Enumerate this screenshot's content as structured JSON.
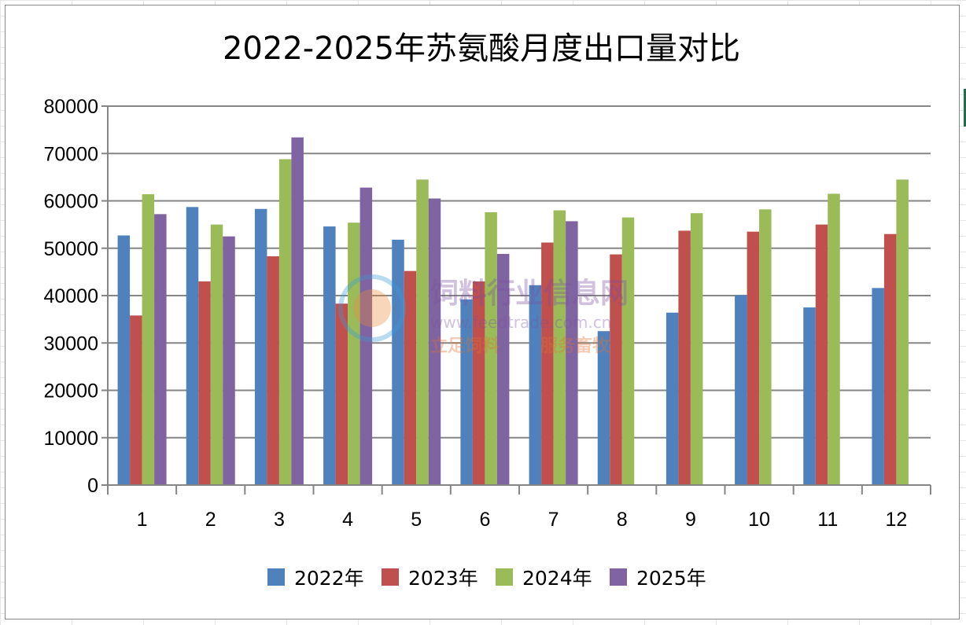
{
  "chart_data": {
    "type": "bar",
    "title": "2022-2025年苏氨酸月度出口量对比",
    "xlabel": "",
    "ylabel": "",
    "categories": [
      "1",
      "2",
      "3",
      "4",
      "5",
      "6",
      "7",
      "8",
      "9",
      "10",
      "11",
      "12"
    ],
    "ylim": [
      0,
      80000
    ],
    "yticks": [
      0,
      10000,
      20000,
      30000,
      40000,
      50000,
      60000,
      70000,
      80000
    ],
    "grid": true,
    "legend_position": "bottom",
    "series": [
      {
        "name": "2022年",
        "color": "#4F81BD",
        "values": [
          52700,
          58700,
          58300,
          54600,
          51800,
          39200,
          42200,
          32500,
          36400,
          40100,
          37500,
          41600
        ]
      },
      {
        "name": "2023年",
        "color": "#C0504D",
        "values": [
          35800,
          43000,
          48300,
          38300,
          45200,
          43000,
          51200,
          48700,
          53700,
          53500,
          55000,
          53000
        ]
      },
      {
        "name": "2024年",
        "color": "#9BBB59",
        "values": [
          61400,
          55000,
          68800,
          55400,
          64500,
          57600,
          58000,
          56500,
          57400,
          58200,
          61500,
          64500
        ]
      },
      {
        "name": "2025年",
        "color": "#8064A2",
        "values": [
          57200,
          52500,
          73400,
          62800,
          60500,
          48800,
          55700,
          null,
          null,
          null,
          null,
          null
        ]
      }
    ]
  },
  "watermark": {
    "name": "饲料行业信息网",
    "url": "www.feedtrade.com.cn",
    "slogan_left": "立足饲料",
    "slogan_right": "服务畜牧"
  }
}
